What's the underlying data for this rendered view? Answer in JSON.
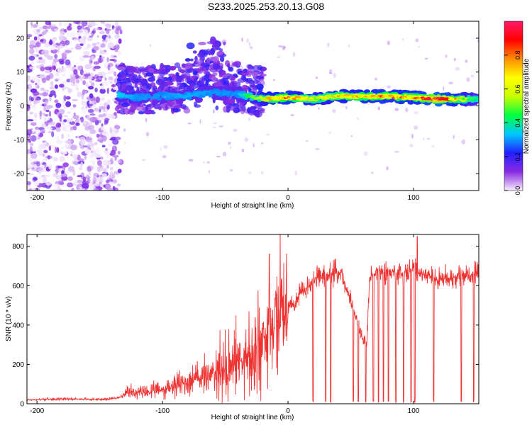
{
  "figure": {
    "title": "S233.2025.253.20.13.G08"
  },
  "colorbar": {
    "label": "Normalized spectral amplitude",
    "ticks": [
      "0.0",
      "0.2",
      "0.4",
      "0.6",
      "0.8"
    ],
    "tick_values": [
      0.0,
      0.2,
      0.4,
      0.6,
      0.8
    ],
    "range": [
      0.0,
      1.0
    ],
    "colors": [
      "#f6eefc",
      "#8a2be2",
      "#2020ff",
      "#00c8ff",
      "#00ff40",
      "#c8ff00",
      "#ffff00",
      "#ff8c00",
      "#ff0000",
      "#ff1a66"
    ]
  },
  "chart_data": [
    {
      "type": "heatmap",
      "name": "spectrogram",
      "title": "S233.2025.253.20.13.G08",
      "xlabel": "Height of straight line (km)",
      "ylabel": "Frequency (Hz)",
      "xlim": [
        -208,
        152
      ],
      "ylim": [
        -25,
        25
      ],
      "xticks": [
        -200,
        -100,
        0,
        100
      ],
      "xtick_labels": [
        "-200",
        "-100",
        "0",
        "100"
      ],
      "yticks": [
        20,
        10,
        0,
        -10,
        -20
      ],
      "ytick_labels": [
        "20",
        "10",
        "0",
        "-10",
        "-20"
      ],
      "ridge": {
        "x": [
          -135,
          -120,
          -100,
          -80,
          -60,
          -40,
          -20,
          0,
          20,
          40,
          60,
          80,
          100,
          120,
          150
        ],
        "frequency": [
          3.2,
          2.5,
          3.0,
          3.0,
          4.0,
          3.5,
          2.0,
          2.5,
          2.0,
          3.0,
          2.8,
          2.8,
          2.5,
          2.0,
          2.0
        ],
        "amplitude": [
          0.35,
          0.3,
          0.3,
          0.32,
          0.3,
          0.3,
          0.65,
          0.8,
          0.6,
          0.7,
          0.75,
          0.8,
          0.75,
          1.0,
          0.4
        ]
      }
    },
    {
      "type": "line",
      "name": "snr",
      "xlabel": "Height of straight line (km)",
      "ylabel": "SNR (10 * v/v)",
      "xlim": [
        -208,
        152
      ],
      "ylim": [
        0,
        860
      ],
      "xticks": [
        -200,
        -100,
        0,
        100
      ],
      "xtick_labels": [
        "-200",
        "-100",
        "0",
        "100"
      ],
      "yticks": [
        0,
        200,
        400,
        600,
        800
      ],
      "ytick_labels": [
        "0",
        "200",
        "400",
        "600",
        "800"
      ],
      "series": [
        {
          "name": "SNR",
          "color": "#ee3333",
          "x": [
            -208,
            -180,
            -150,
            -135,
            -125,
            -115,
            -100,
            -90,
            -80,
            -70,
            -60,
            -50,
            -40,
            -30,
            -25,
            -20,
            -15,
            -10,
            -5,
            0,
            5,
            10,
            15,
            20,
            25,
            30,
            35,
            40,
            43,
            45,
            50,
            55,
            60,
            63,
            65,
            70,
            80,
            90,
            100,
            110,
            120,
            130,
            140,
            152
          ],
          "y": [
            20,
            25,
            22,
            30,
            60,
            55,
            70,
            95,
            110,
            135,
            155,
            170,
            210,
            250,
            290,
            330,
            370,
            400,
            430,
            470,
            520,
            560,
            590,
            620,
            640,
            650,
            660,
            670,
            660,
            600,
            520,
            420,
            310,
            330,
            640,
            670,
            680,
            660,
            680,
            650,
            630,
            640,
            650,
            660
          ]
        }
      ],
      "peaks": [
        {
          "x": -15,
          "y": 760
        },
        {
          "x": 103,
          "y": 850
        }
      ],
      "dropouts_x": [
        20,
        30,
        34,
        52,
        56,
        62,
        68,
        72,
        76,
        80,
        86,
        92,
        98,
        101,
        116,
        138,
        148
      ]
    }
  ]
}
